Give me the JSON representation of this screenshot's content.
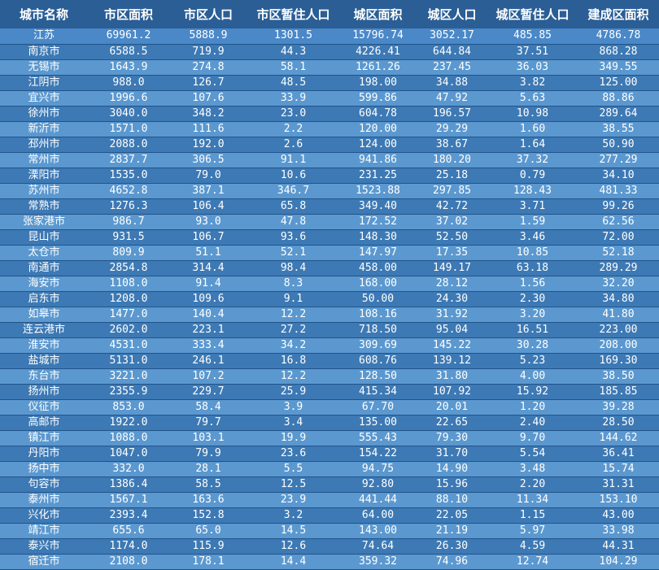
{
  "table": {
    "headers": [
      "城市名称",
      "市区面积",
      "市区人口",
      "市区暂住人口",
      "城区面积",
      "城区人口",
      "城区暂住人口",
      "建成区面积"
    ],
    "rows": [
      [
        "江苏",
        "69961.2",
        "5888.9",
        "1301.5",
        "15796.74",
        "3052.17",
        "485.85",
        "4786.78"
      ],
      [
        "南京市",
        "6588.5",
        "719.9",
        "44.3",
        "4226.41",
        "644.84",
        "37.51",
        "868.28"
      ],
      [
        "无锡市",
        "1643.9",
        "274.8",
        "58.1",
        "1261.26",
        "237.45",
        "36.03",
        "349.55"
      ],
      [
        "江阴市",
        "988.0",
        "126.7",
        "48.5",
        "198.00",
        "34.88",
        "3.82",
        "125.00"
      ],
      [
        "宜兴市",
        "1996.6",
        "107.6",
        "33.9",
        "599.86",
        "47.92",
        "5.63",
        "88.86"
      ],
      [
        "徐州市",
        "3040.0",
        "348.2",
        "23.0",
        "604.78",
        "196.57",
        "10.98",
        "289.64"
      ],
      [
        "新沂市",
        "1571.0",
        "111.6",
        "2.2",
        "120.00",
        "29.29",
        "1.60",
        "38.55"
      ],
      [
        "邳州市",
        "2088.0",
        "192.0",
        "2.6",
        "124.00",
        "38.67",
        "1.64",
        "50.90"
      ],
      [
        "常州市",
        "2837.7",
        "306.5",
        "91.1",
        "941.86",
        "180.20",
        "37.32",
        "277.29"
      ],
      [
        "溧阳市",
        "1535.0",
        "79.0",
        "10.6",
        "231.25",
        "25.18",
        "0.79",
        "34.10"
      ],
      [
        "苏州市",
        "4652.8",
        "387.1",
        "346.7",
        "1523.88",
        "297.85",
        "128.43",
        "481.33"
      ],
      [
        "常熟市",
        "1276.3",
        "106.4",
        "65.8",
        "349.40",
        "42.72",
        "3.71",
        "99.26"
      ],
      [
        "张家港市",
        "986.7",
        "93.0",
        "47.8",
        "172.52",
        "37.02",
        "1.59",
        "62.56"
      ],
      [
        "昆山市",
        "931.5",
        "106.7",
        "93.6",
        "148.30",
        "52.50",
        "3.46",
        "72.00"
      ],
      [
        "太仓市",
        "809.9",
        "51.1",
        "52.1",
        "147.97",
        "17.35",
        "10.85",
        "52.18"
      ],
      [
        "南通市",
        "2854.8",
        "314.4",
        "98.4",
        "458.00",
        "149.17",
        "63.18",
        "289.29"
      ],
      [
        "海安市",
        "1108.0",
        "91.4",
        "8.3",
        "168.00",
        "28.12",
        "1.56",
        "32.20"
      ],
      [
        "启东市",
        "1208.0",
        "109.6",
        "9.1",
        "50.00",
        "24.30",
        "2.30",
        "34.80"
      ],
      [
        "如皋市",
        "1477.0",
        "140.4",
        "12.2",
        "108.16",
        "31.92",
        "3.20",
        "41.80"
      ],
      [
        "连云港市",
        "2602.0",
        "223.1",
        "27.2",
        "718.50",
        "95.04",
        "16.51",
        "223.00"
      ],
      [
        "淮安市",
        "4531.0",
        "333.4",
        "34.2",
        "309.69",
        "145.22",
        "30.28",
        "208.00"
      ],
      [
        "盐城市",
        "5131.0",
        "246.1",
        "16.8",
        "608.76",
        "139.12",
        "5.23",
        "169.30"
      ],
      [
        "东台市",
        "3221.0",
        "107.2",
        "12.2",
        "128.50",
        "31.80",
        "4.00",
        "38.50"
      ],
      [
        "扬州市",
        "2355.9",
        "229.7",
        "25.9",
        "415.34",
        "107.92",
        "15.92",
        "185.85"
      ],
      [
        "仪征市",
        "853.0",
        "58.4",
        "3.9",
        "67.70",
        "20.01",
        "1.20",
        "39.28"
      ],
      [
        "高邮市",
        "1922.0",
        "79.7",
        "3.4",
        "135.00",
        "22.65",
        "2.40",
        "28.50"
      ],
      [
        "镇江市",
        "1088.0",
        "103.1",
        "19.9",
        "555.43",
        "79.30",
        "9.70",
        "144.62"
      ],
      [
        "丹阳市",
        "1047.0",
        "79.9",
        "23.6",
        "154.22",
        "31.70",
        "5.54",
        "36.41"
      ],
      [
        "扬中市",
        "332.0",
        "28.1",
        "5.5",
        "94.75",
        "14.90",
        "3.48",
        "15.74"
      ],
      [
        "句容市",
        "1386.4",
        "58.5",
        "12.5",
        "92.80",
        "15.96",
        "2.20",
        "31.31"
      ],
      [
        "泰州市",
        "1567.1",
        "163.6",
        "23.9",
        "441.44",
        "88.10",
        "11.34",
        "153.10"
      ],
      [
        "兴化市",
        "2393.4",
        "152.8",
        "3.2",
        "64.00",
        "22.05",
        "1.15",
        "43.00"
      ],
      [
        "靖江市",
        "655.6",
        "65.0",
        "14.5",
        "143.00",
        "21.19",
        "5.97",
        "33.98"
      ],
      [
        "泰兴市",
        "1174.0",
        "115.9",
        "12.6",
        "74.64",
        "26.30",
        "4.59",
        "44.31"
      ],
      [
        "宿迁市",
        "2108.0",
        "178.1",
        "14.4",
        "359.32",
        "74.96",
        "12.74",
        "104.29"
      ]
    ]
  }
}
